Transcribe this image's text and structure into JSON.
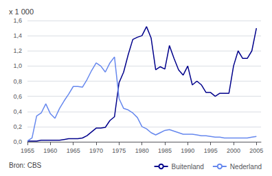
{
  "chart_data": {
    "type": "line",
    "title": "x 1 000",
    "annotations": [
      "Bron: CBS"
    ],
    "xlim": [
      1955,
      2006
    ],
    "xticks": [
      1955,
      1960,
      1965,
      1970,
      1975,
      1980,
      1985,
      1990,
      1995,
      2000,
      2005
    ],
    "ylim": [
      0,
      1.6
    ],
    "yticks": [
      {
        "value": 0.0,
        "label": "0,0"
      },
      {
        "value": 0.2,
        "label": "0,2"
      },
      {
        "value": 0.4,
        "label": "0,4"
      },
      {
        "value": 0.6,
        "label": "0,6"
      },
      {
        "value": 0.8,
        "label": "0,8"
      },
      {
        "value": 1.0,
        "label": "1,0"
      },
      {
        "value": 1.2,
        "label": "1,2"
      },
      {
        "value": 1.4,
        "label": "1,4"
      },
      {
        "value": 1.6,
        "label": "1,6"
      }
    ],
    "grid": true,
    "legend": "bottom",
    "x": [
      1955,
      1956,
      1957,
      1958,
      1959,
      1960,
      1961,
      1962,
      1963,
      1964,
      1965,
      1966,
      1967,
      1968,
      1969,
      1970,
      1971,
      1972,
      1973,
      1974,
      1975,
      1976,
      1977,
      1978,
      1979,
      1980,
      1981,
      1982,
      1983,
      1984,
      1985,
      1986,
      1987,
      1988,
      1989,
      1990,
      1991,
      1992,
      1993,
      1994,
      1995,
      1996,
      1997,
      1998,
      1999,
      2000,
      2001,
      2002,
      2003,
      2004,
      2005
    ],
    "series": [
      {
        "name": "Buitenland",
        "color": "#00008B",
        "values": [
          0.01,
          0.01,
          0.01,
          0.02,
          0.02,
          0.02,
          0.02,
          0.02,
          0.03,
          0.04,
          0.04,
          0.04,
          0.05,
          0.08,
          0.13,
          0.18,
          0.18,
          0.19,
          0.28,
          0.33,
          0.78,
          0.92,
          1.15,
          1.35,
          1.38,
          1.4,
          1.52,
          1.37,
          0.95,
          0.99,
          0.96,
          1.27,
          1.1,
          0.95,
          0.88,
          1.0,
          0.75,
          0.8,
          0.75,
          0.65,
          0.65,
          0.6,
          0.64,
          0.64,
          0.64,
          1.0,
          1.2,
          1.1,
          1.1,
          1.2,
          1.5
        ]
      },
      {
        "name": "Nederland",
        "color": "#6688EE",
        "values": [
          0.01,
          0.05,
          0.34,
          0.38,
          0.5,
          0.37,
          0.31,
          0.44,
          0.54,
          0.63,
          0.73,
          0.73,
          0.72,
          0.82,
          0.94,
          1.04,
          1.0,
          0.92,
          1.04,
          1.12,
          0.57,
          0.44,
          0.42,
          0.38,
          0.32,
          0.2,
          0.17,
          0.12,
          0.09,
          0.12,
          0.15,
          0.16,
          0.14,
          0.12,
          0.1,
          0.1,
          0.1,
          0.09,
          0.08,
          0.08,
          0.07,
          0.06,
          0.06,
          0.05,
          0.05,
          0.05,
          0.05,
          0.05,
          0.05,
          0.06,
          0.07
        ]
      }
    ]
  }
}
